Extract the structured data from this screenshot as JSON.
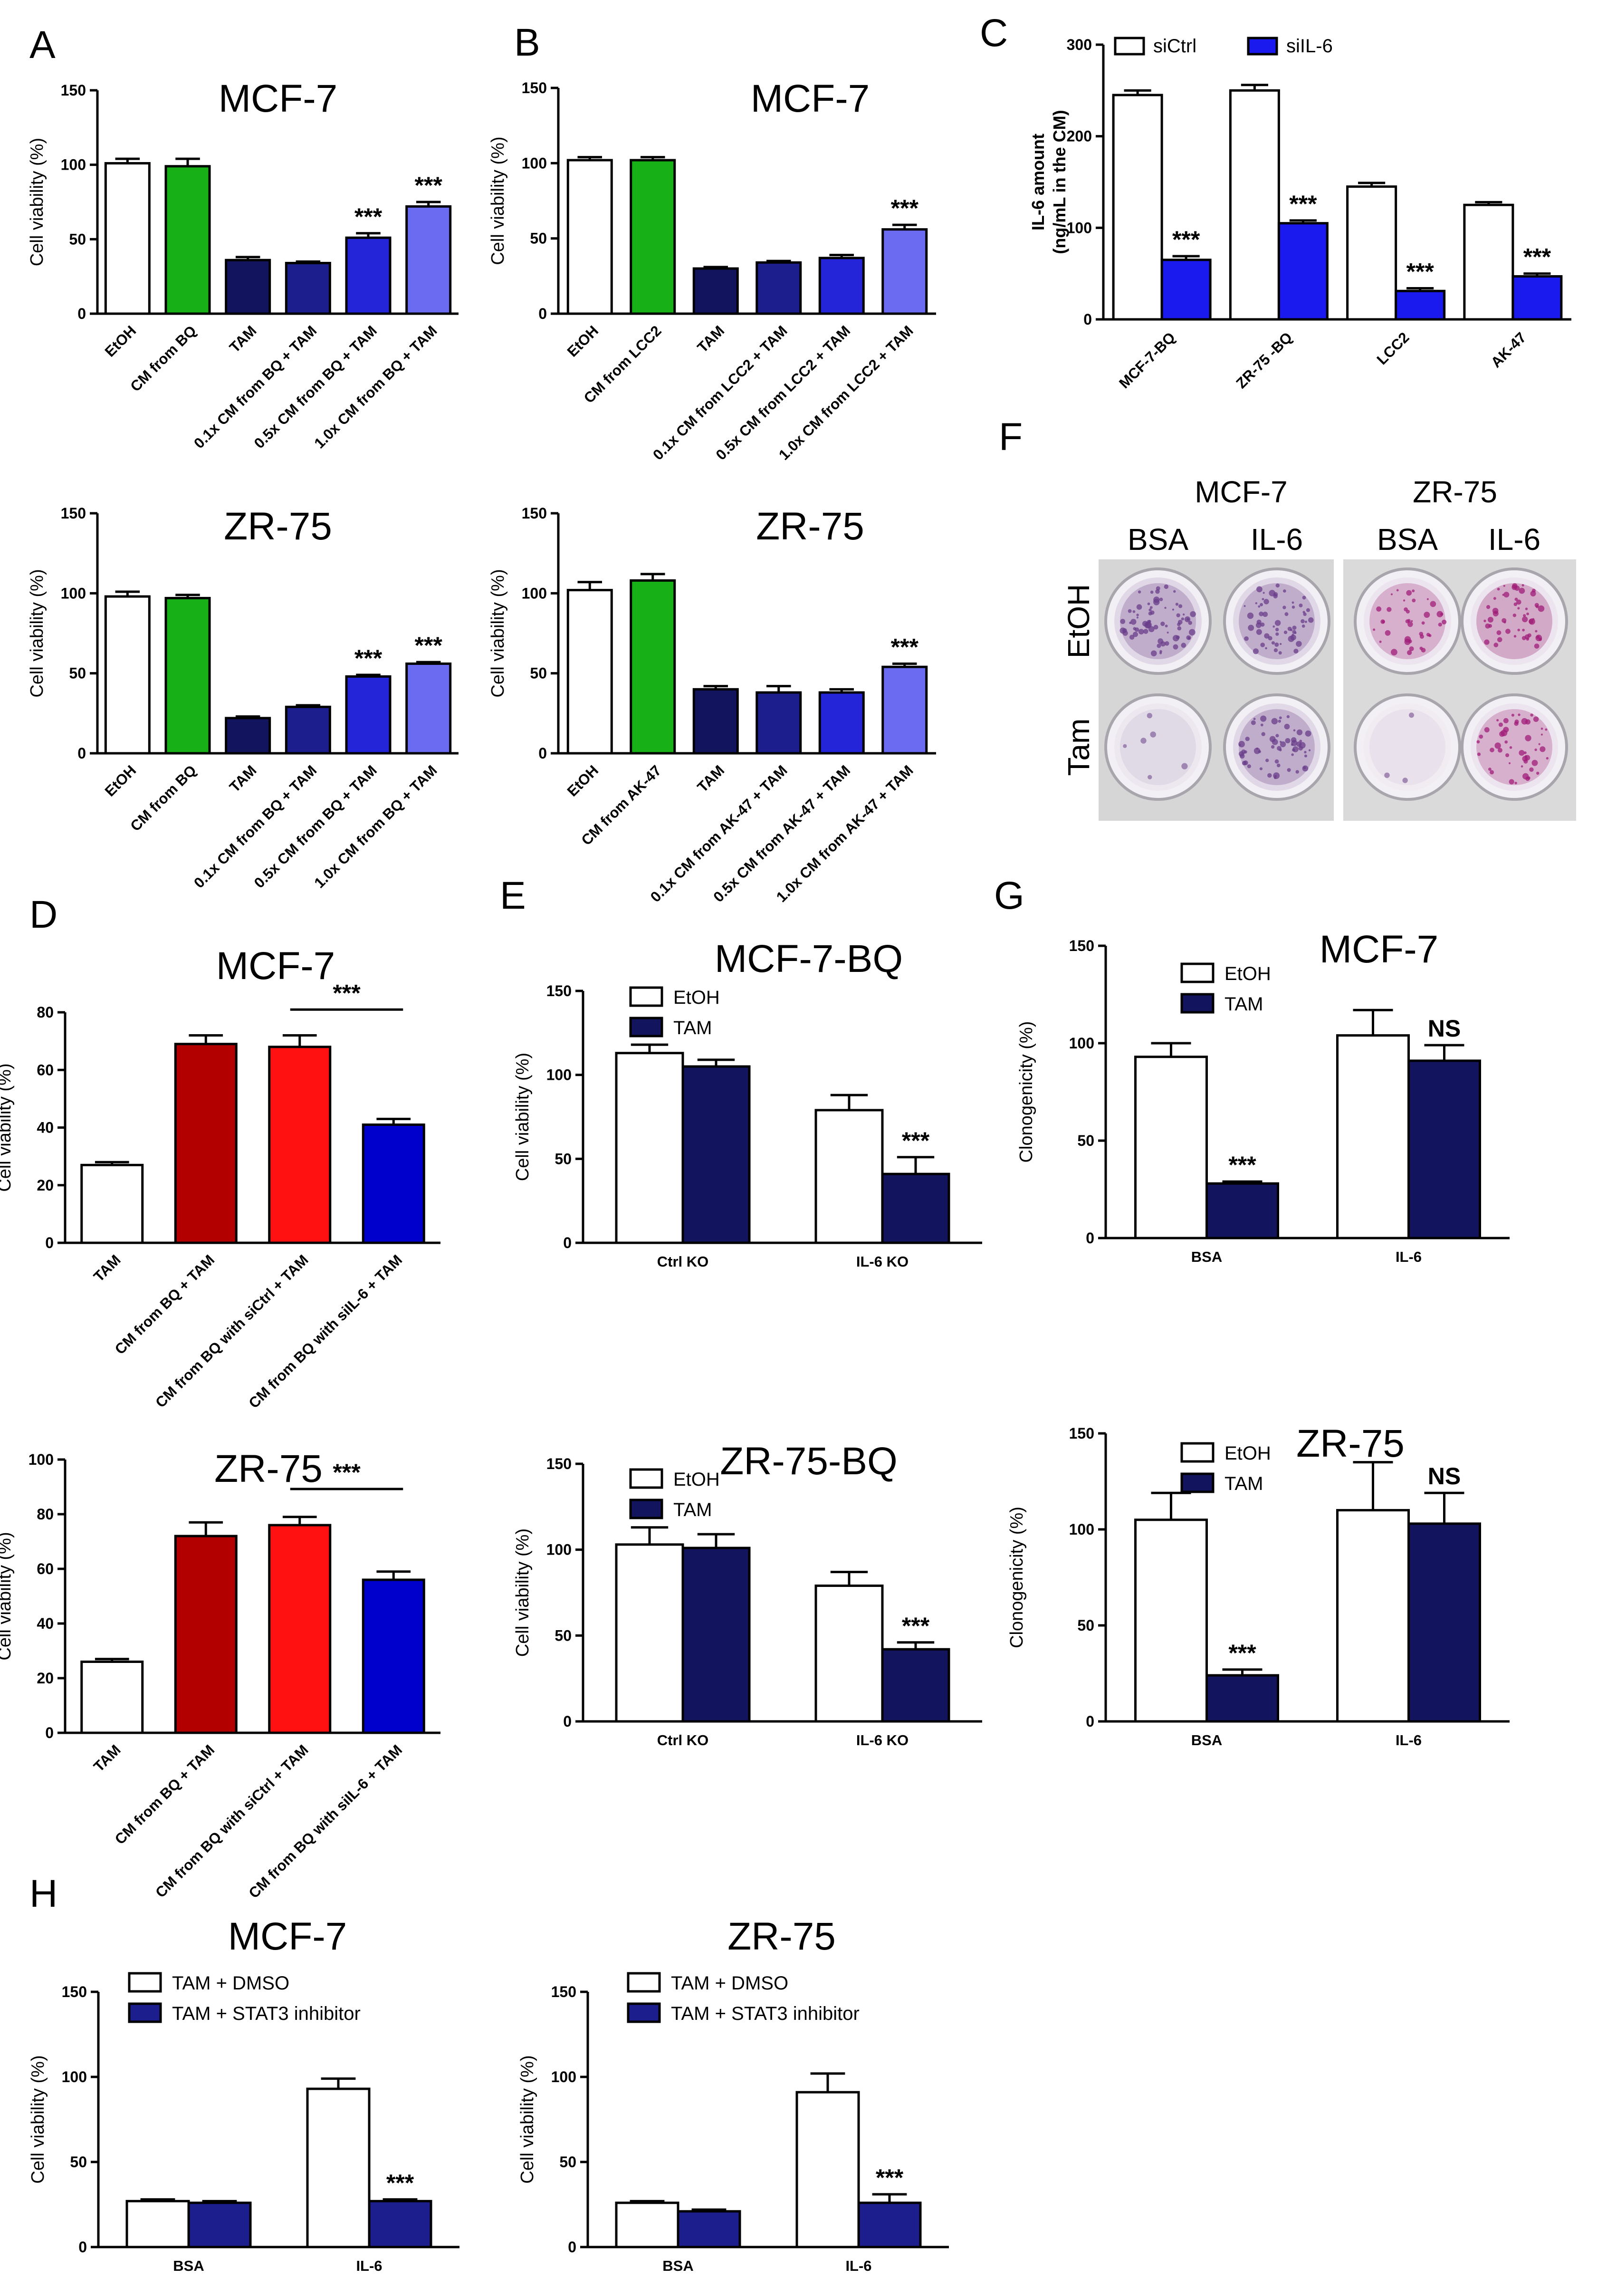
{
  "panel_letters": [
    "A",
    "B",
    "C",
    "D",
    "E",
    "F",
    "G",
    "H"
  ],
  "colors": {
    "white": "#ffffff",
    "green": "#17b017",
    "navy": "#12145e",
    "dark_blue": "#1b1e8c",
    "blue": "#2424d9",
    "periwinkle": "#6b6bf2",
    "bright_blue": "#1a1aee",
    "dark_red": "#b20000",
    "red": "#ff1111",
    "royal_blue": "#0000cc"
  },
  "panel_f": {
    "columns": [
      "MCF-7",
      "ZR-75"
    ],
    "treatments": [
      "BSA",
      "IL-6",
      "BSA",
      "IL-6"
    ],
    "rows": [
      "EtOH",
      "Tam"
    ]
  },
  "chart_data": [
    {
      "id": "A1",
      "type": "bar",
      "title": "MCF-7",
      "ylabel": "Cell viability (%)",
      "xlabel": "",
      "ylim": [
        0,
        150
      ],
      "yticks": [
        0,
        50,
        100,
        150
      ],
      "categories": [
        "EtOH",
        "CM from BQ",
        "TAM",
        "0.1x CM from BQ + TAM",
        "0.5x CM from BQ + TAM",
        "1.0x CM from BQ + TAM"
      ],
      "values": [
        101,
        99,
        36,
        34,
        51,
        72
      ],
      "errors": [
        3,
        5,
        2,
        1,
        3,
        3
      ],
      "colors": [
        "white",
        "green",
        "navy",
        "dark_blue",
        "blue",
        "periwinkle"
      ],
      "sig": [
        "",
        "",
        "",
        "",
        "***",
        "***"
      ]
    },
    {
      "id": "A2",
      "type": "bar",
      "title": "ZR-75",
      "ylabel": "Cell viability (%)",
      "xlabel": "",
      "ylim": [
        0,
        150
      ],
      "yticks": [
        0,
        50,
        100,
        150
      ],
      "categories": [
        "EtOH",
        "CM from BQ",
        "TAM",
        "0.1x CM from BQ + TAM",
        "0.5x CM from BQ + TAM",
        "1.0x CM from BQ + TAM"
      ],
      "values": [
        98,
        97,
        22,
        29,
        48,
        56
      ],
      "errors": [
        3,
        2,
        1,
        1,
        1,
        1
      ],
      "colors": [
        "white",
        "green",
        "navy",
        "dark_blue",
        "blue",
        "periwinkle"
      ],
      "sig": [
        "",
        "",
        "",
        "",
        "***",
        "***"
      ]
    },
    {
      "id": "B1",
      "type": "bar",
      "title": "MCF-7",
      "ylabel": "Cell viability (%)",
      "xlabel": "",
      "ylim": [
        0,
        150
      ],
      "yticks": [
        0,
        50,
        100,
        150
      ],
      "categories": [
        "EtOH",
        "CM from LCC2",
        "TAM",
        "0.1x CM from LCC2 + TAM",
        "0.5x CM from LCC2 + TAM",
        "1.0x CM from LCC2 + TAM"
      ],
      "values": [
        102,
        102,
        30,
        34,
        37,
        56
      ],
      "errors": [
        2,
        2,
        1,
        1,
        2,
        3
      ],
      "colors": [
        "white",
        "green",
        "navy",
        "dark_blue",
        "blue",
        "periwinkle"
      ],
      "sig": [
        "",
        "",
        "",
        "",
        "",
        "***"
      ]
    },
    {
      "id": "B2",
      "type": "bar",
      "title": "ZR-75",
      "ylabel": "Cell viability (%)",
      "xlabel": "",
      "ylim": [
        0,
        150
      ],
      "yticks": [
        0,
        50,
        100,
        150
      ],
      "categories": [
        "EtOH",
        "CM from AK-47",
        "TAM",
        "0.1x CM from AK-47 + TAM",
        "0.5x CM from AK-47 + TAM",
        "1.0x CM from AK-47 + TAM"
      ],
      "values": [
        102,
        108,
        40,
        38,
        38,
        54
      ],
      "errors": [
        5,
        4,
        2,
        4,
        2,
        2
      ],
      "colors": [
        "white",
        "green",
        "navy",
        "dark_blue",
        "blue",
        "periwinkle"
      ],
      "sig": [
        "",
        "",
        "",
        "",
        "",
        "***"
      ]
    },
    {
      "id": "C",
      "type": "bar",
      "title": "",
      "ylabel": "IL-6 amount (ng/mL in the CM)",
      "xlabel": "",
      "ylim": [
        0,
        300
      ],
      "yticks": [
        0,
        100,
        200,
        300
      ],
      "categories": [
        "MCF-7-BQ",
        "ZR-75 -BQ",
        "LCC2",
        "AK-47"
      ],
      "series": [
        {
          "name": "siCtrl",
          "values": [
            245,
            250,
            145,
            125
          ],
          "errors": [
            5,
            6,
            4,
            3
          ],
          "color": "white"
        },
        {
          "name": "siIL-6",
          "values": [
            65,
            105,
            31,
            47
          ],
          "errors": [
            4,
            3,
            3,
            3
          ],
          "color": "bright_blue"
        }
      ],
      "sig": [
        "***",
        "***",
        "***",
        "***"
      ]
    },
    {
      "id": "D1",
      "type": "bar",
      "title": "MCF-7",
      "ylabel": "Cell viability (%)",
      "xlabel": "",
      "ylim": [
        0,
        80
      ],
      "yticks": [
        0,
        20,
        40,
        60,
        80
      ],
      "categories": [
        "TAM",
        "CM from BQ + TAM",
        "CM from BQ with siCtrl + TAM",
        "CM from BQ with siIL-6 + TAM"
      ],
      "values": [
        27,
        69,
        68,
        41
      ],
      "errors": [
        1,
        3,
        4,
        2
      ],
      "colors": [
        "white",
        "dark_red",
        "red",
        "royal_blue"
      ],
      "bracket": {
        "from": 2,
        "to": 3,
        "label": "***"
      }
    },
    {
      "id": "D2",
      "type": "bar",
      "title": "ZR-75",
      "ylabel": "Cell viability (%)",
      "xlabel": "",
      "ylim": [
        0,
        100
      ],
      "yticks": [
        0,
        20,
        40,
        60,
        80,
        100
      ],
      "categories": [
        "TAM",
        "CM from BQ + TAM",
        "CM from BQ with siCtrl + TAM",
        "CM from BQ with siIL-6 + TAM"
      ],
      "values": [
        26,
        72,
        76,
        56
      ],
      "errors": [
        1,
        5,
        3,
        3
      ],
      "colors": [
        "white",
        "dark_red",
        "red",
        "royal_blue"
      ],
      "bracket": {
        "from": 2,
        "to": 3,
        "label": "***"
      }
    },
    {
      "id": "E1",
      "type": "bar",
      "title": "MCF-7-BQ",
      "ylabel": "Cell viability (%)",
      "xlabel": "",
      "ylim": [
        0,
        150
      ],
      "yticks": [
        0,
        50,
        100,
        150
      ],
      "categories": [
        "Ctrl KO",
        "IL-6 KO"
      ],
      "series": [
        {
          "name": "EtOH",
          "values": [
            113,
            79
          ],
          "errors": [
            5,
            9
          ],
          "color": "white"
        },
        {
          "name": "TAM",
          "values": [
            105,
            41
          ],
          "errors": [
            4,
            10
          ],
          "color": "navy"
        }
      ],
      "sig": [
        "",
        "***"
      ]
    },
    {
      "id": "E2",
      "type": "bar",
      "title": "ZR-75-BQ",
      "ylabel": "Cell viability (%)",
      "xlabel": "",
      "ylim": [
        0,
        150
      ],
      "yticks": [
        0,
        50,
        100,
        150
      ],
      "categories": [
        "Ctrl KO",
        "IL-6 KO"
      ],
      "series": [
        {
          "name": "EtOH",
          "values": [
            103,
            79
          ],
          "errors": [
            10,
            8
          ],
          "color": "white"
        },
        {
          "name": "TAM",
          "values": [
            101,
            42
          ],
          "errors": [
            8,
            4
          ],
          "color": "navy"
        }
      ],
      "sig": [
        "",
        "***"
      ]
    },
    {
      "id": "G1",
      "type": "bar",
      "title": "MCF-7",
      "ylabel": "Clonogenicity (%)",
      "xlabel": "",
      "ylim": [
        0,
        150
      ],
      "yticks": [
        0,
        50,
        100,
        150
      ],
      "categories": [
        "BSA",
        "IL-6"
      ],
      "series": [
        {
          "name": "EtOH",
          "values": [
            93,
            104
          ],
          "errors": [
            7,
            13
          ],
          "color": "white"
        },
        {
          "name": "TAM",
          "values": [
            28,
            91
          ],
          "errors": [
            1,
            8
          ],
          "color": "navy"
        }
      ],
      "sig": [
        "***",
        "NS"
      ]
    },
    {
      "id": "G2",
      "type": "bar",
      "title": "ZR-75",
      "ylabel": "Clonogenicity (%)",
      "xlabel": "",
      "ylim": [
        0,
        150
      ],
      "yticks": [
        0,
        50,
        100,
        150
      ],
      "categories": [
        "BSA",
        "IL-6"
      ],
      "series": [
        {
          "name": "EtOH",
          "values": [
            105,
            110
          ],
          "errors": [
            14,
            25
          ],
          "color": "white"
        },
        {
          "name": "TAM",
          "values": [
            24,
            103
          ],
          "errors": [
            3,
            16
          ],
          "color": "navy"
        }
      ],
      "sig": [
        "***",
        "NS"
      ]
    },
    {
      "id": "H1",
      "type": "bar",
      "title": "MCF-7",
      "ylabel": "Cell viability (%)",
      "xlabel": "",
      "ylim": [
        0,
        150
      ],
      "yticks": [
        0,
        50,
        100,
        150
      ],
      "categories": [
        "BSA",
        "IL-6"
      ],
      "series": [
        {
          "name": "TAM + DMSO",
          "values": [
            27,
            93
          ],
          "errors": [
            1,
            6
          ],
          "color": "white"
        },
        {
          "name": "TAM + STAT3 inhibitor",
          "values": [
            26,
            27
          ],
          "errors": [
            1,
            1
          ],
          "color": "dark_blue"
        }
      ],
      "sig": [
        "",
        "***"
      ]
    },
    {
      "id": "H2",
      "type": "bar",
      "title": "ZR-75",
      "ylabel": "Cell viability (%)",
      "xlabel": "",
      "ylim": [
        0,
        150
      ],
      "yticks": [
        0,
        50,
        100,
        150
      ],
      "categories": [
        "BSA",
        "IL-6"
      ],
      "series": [
        {
          "name": "TAM + DMSO",
          "values": [
            26,
            91
          ],
          "errors": [
            1,
            11
          ],
          "color": "white"
        },
        {
          "name": "TAM + STAT3 inhibitor",
          "values": [
            21,
            26
          ],
          "errors": [
            1,
            5
          ],
          "color": "dark_blue"
        }
      ],
      "sig": [
        "",
        "***"
      ]
    }
  ]
}
